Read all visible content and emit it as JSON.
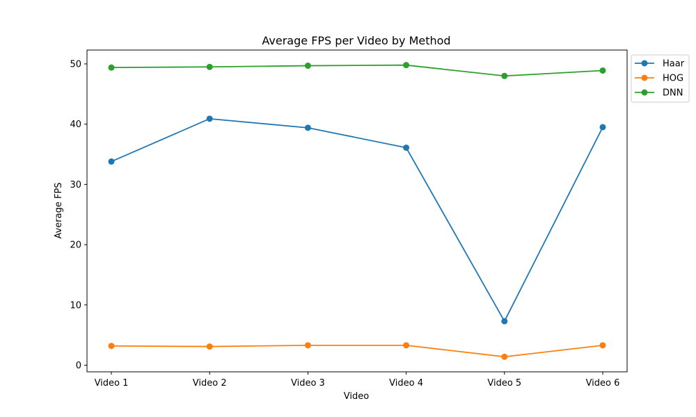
{
  "chart_data": {
    "type": "line",
    "title": "Average FPS per Video by Method",
    "xlabel": "Video",
    "ylabel": "Average FPS",
    "categories": [
      "Video 1",
      "Video 2",
      "Video 3",
      "Video 4",
      "Video 5",
      "Video 6"
    ],
    "ylim": [
      -1.1,
      52.3
    ],
    "yticks": [
      0,
      10,
      20,
      30,
      40,
      50
    ],
    "grid": false,
    "legend_position": "outside-top-right",
    "series": [
      {
        "name": "Haar",
        "color": "#1f77b4",
        "marker": "circle",
        "values": [
          33.8,
          40.9,
          39.4,
          36.1,
          7.3,
          39.5
        ]
      },
      {
        "name": "HOG",
        "color": "#ff7f0e",
        "marker": "circle",
        "values": [
          3.2,
          3.1,
          3.3,
          3.3,
          1.4,
          3.3
        ]
      },
      {
        "name": "DNN",
        "color": "#2ca02c",
        "marker": "circle",
        "values": [
          49.4,
          49.5,
          49.7,
          49.8,
          48.0,
          48.9
        ]
      }
    ]
  }
}
